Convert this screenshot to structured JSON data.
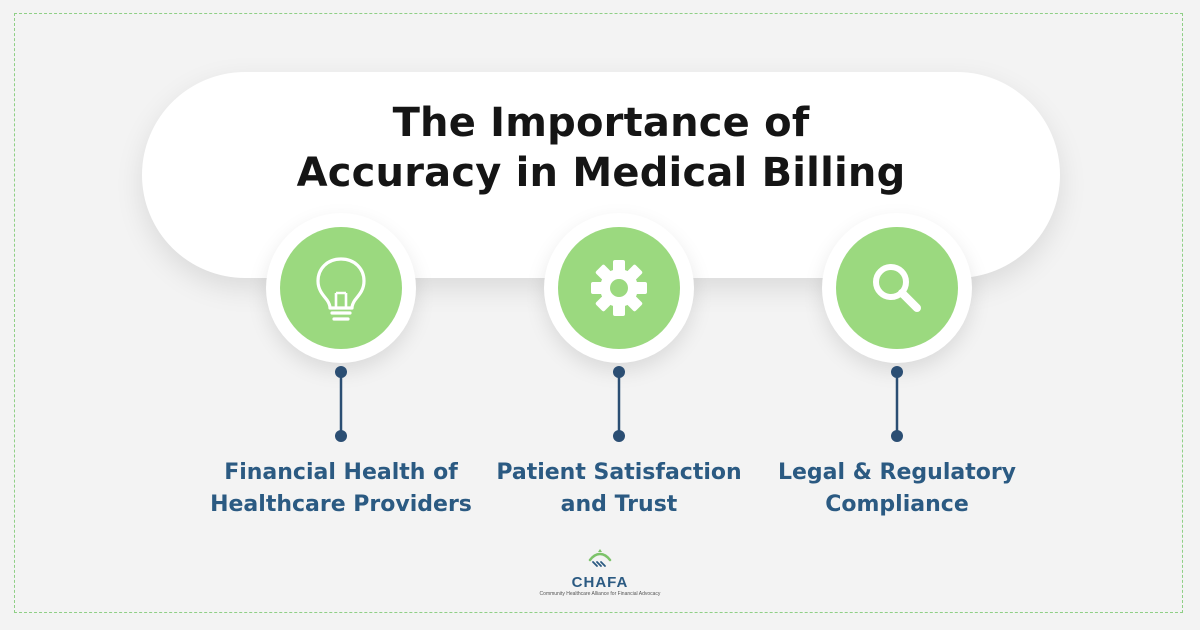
{
  "title": {
    "line1": "The Importance of",
    "line2": "Accuracy in Medical Billing"
  },
  "steps": [
    {
      "icon": "lightbulb-icon",
      "line1": "Financial Health of",
      "line2": "Healthcare Providers"
    },
    {
      "icon": "gear-icon",
      "line1": "Patient Satisfaction",
      "line2": "and Trust"
    },
    {
      "icon": "magnifier-icon",
      "line1": "Legal & Regulatory",
      "line2": "Compliance"
    }
  ],
  "logo": {
    "name": "CHAFA",
    "tagline": "Community Healthcare Alliance for Financial Advocacy"
  },
  "colors": {
    "background": "#f3f3f3",
    "accent_green": "#9bd97f",
    "label_blue": "#2b5a82",
    "connector": "#2b4e73"
  }
}
